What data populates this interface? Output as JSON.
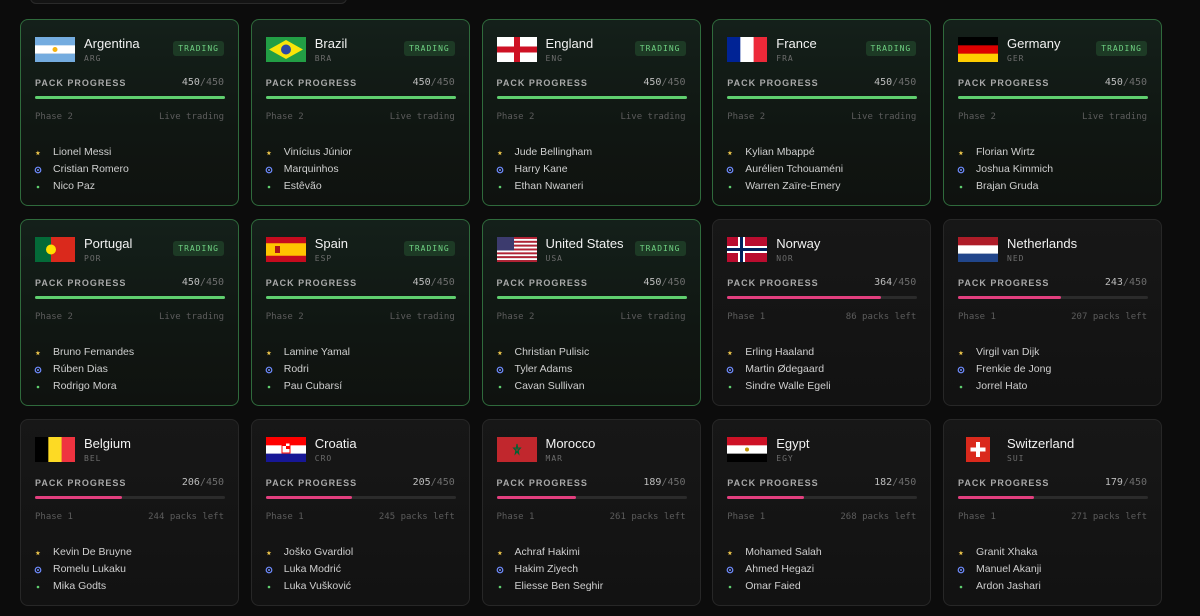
{
  "progress_label": "PACK PROGRESS",
  "cards": [
    {
      "name": "Argentina",
      "code": "ARG",
      "status": "TRADING",
      "packs": 450,
      "total": 450,
      "phase": "Phase 2",
      "note": "Live trading",
      "players": [
        "Lionel Messi",
        "Cristian Romero",
        "Nico Paz"
      ]
    },
    {
      "name": "Brazil",
      "code": "BRA",
      "status": "TRADING",
      "packs": 450,
      "total": 450,
      "phase": "Phase 2",
      "note": "Live trading",
      "players": [
        "Vinícius Júnior",
        "Marquinhos",
        "Estêvão"
      ]
    },
    {
      "name": "England",
      "code": "ENG",
      "status": "TRADING",
      "packs": 450,
      "total": 450,
      "phase": "Phase 2",
      "note": "Live trading",
      "players": [
        "Jude Bellingham",
        "Harry Kane",
        "Ethan Nwaneri"
      ]
    },
    {
      "name": "France",
      "code": "FRA",
      "status": "TRADING",
      "packs": 450,
      "total": 450,
      "phase": "Phase 2",
      "note": "Live trading",
      "players": [
        "Kylian Mbappé",
        "Aurélien Tchouaméni",
        "Warren Zaïre-Emery"
      ]
    },
    {
      "name": "Germany",
      "code": "GER",
      "status": "TRADING",
      "packs": 450,
      "total": 450,
      "phase": "Phase 2",
      "note": "Live trading",
      "players": [
        "Florian Wirtz",
        "Joshua Kimmich",
        "Brajan Gruda"
      ]
    },
    {
      "name": "Portugal",
      "code": "POR",
      "status": "TRADING",
      "packs": 450,
      "total": 450,
      "phase": "Phase 2",
      "note": "Live trading",
      "players": [
        "Bruno Fernandes",
        "Rúben Dias",
        "Rodrigo Mora"
      ]
    },
    {
      "name": "Spain",
      "code": "ESP",
      "status": "TRADING",
      "packs": 450,
      "total": 450,
      "phase": "Phase 2",
      "note": "Live trading",
      "players": [
        "Lamine Yamal",
        "Rodri",
        "Pau Cubarsí"
      ]
    },
    {
      "name": "United States",
      "code": "USA",
      "status": "TRADING",
      "packs": 450,
      "total": 450,
      "phase": "Phase 2",
      "note": "Live trading",
      "players": [
        "Christian Pulisic",
        "Tyler Adams",
        "Cavan Sullivan"
      ]
    },
    {
      "name": "Norway",
      "code": "NOR",
      "packs": 364,
      "total": 450,
      "phase": "Phase 1",
      "note": "86 packs left",
      "players": [
        "Erling Haaland",
        "Martin Ødegaard",
        "Sindre Walle Egeli"
      ]
    },
    {
      "name": "Netherlands",
      "code": "NED",
      "packs": 243,
      "total": 450,
      "phase": "Phase 1",
      "note": "207 packs left",
      "players": [
        "Virgil van Dijk",
        "Frenkie de Jong",
        "Jorrel Hato"
      ]
    },
    {
      "name": "Belgium",
      "code": "BEL",
      "packs": 206,
      "total": 450,
      "phase": "Phase 1",
      "note": "244 packs left",
      "players": [
        "Kevin De Bruyne",
        "Romelu Lukaku",
        "Mika Godts"
      ]
    },
    {
      "name": "Croatia",
      "code": "CRO",
      "packs": 205,
      "total": 450,
      "phase": "Phase 1",
      "note": "245 packs left",
      "players": [
        "Joško Gvardiol",
        "Luka Modrić",
        "Luka Vušković"
      ]
    },
    {
      "name": "Morocco",
      "code": "MAR",
      "packs": 189,
      "total": 450,
      "phase": "Phase 1",
      "note": "261 packs left",
      "players": [
        "Achraf Hakimi",
        "Hakim Ziyech",
        "Eliesse Ben Seghir"
      ]
    },
    {
      "name": "Egypt",
      "code": "EGY",
      "packs": 182,
      "total": 450,
      "phase": "Phase 1",
      "note": "268 packs left",
      "players": [
        "Mohamed Salah",
        "Ahmed Hegazi",
        "Omar Faied"
      ]
    },
    {
      "name": "Switzerland",
      "code": "SUI",
      "packs": 179,
      "total": 450,
      "phase": "Phase 1",
      "note": "271 packs left",
      "players": [
        "Granit Xhaka",
        "Manuel Akanji",
        "Ardon Jashari"
      ]
    }
  ]
}
